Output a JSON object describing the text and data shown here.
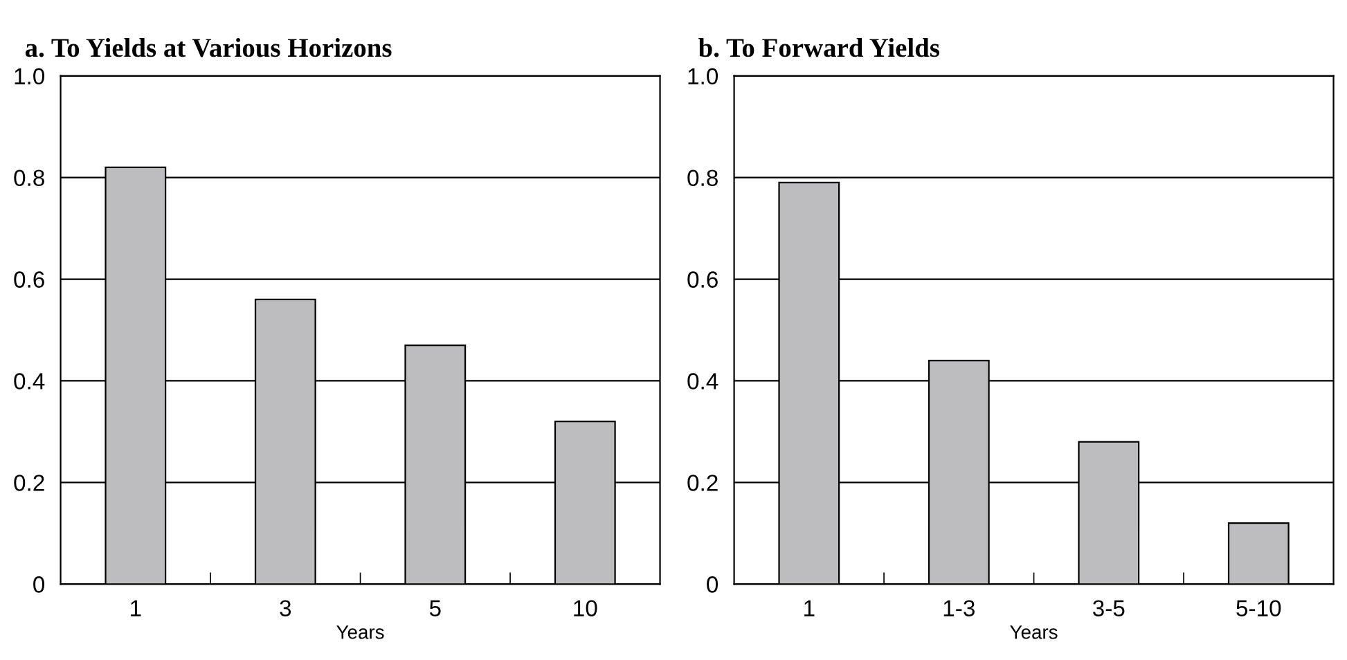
{
  "chart_data": [
    {
      "type": "bar",
      "title": "a. To Yields at Various Horizons",
      "xlabel": "Years",
      "categories": [
        "1",
        "3",
        "5",
        "10"
      ],
      "values": [
        0.82,
        0.56,
        0.47,
        0.32
      ],
      "color": "#bdbdc0",
      "ylim": [
        0,
        1.0
      ],
      "yticks": [
        0,
        0.2,
        0.4,
        0.6,
        0.8,
        {
          "value": 1,
          "label": "1.0"
        }
      ],
      "grid": "y"
    },
    {
      "type": "bar",
      "title": "b. To Forward Yields",
      "xlabel": "Years",
      "categories": [
        "1",
        "1-3",
        "3-5",
        "5-10"
      ],
      "values": [
        0.79,
        0.44,
        0.28,
        0.12
      ],
      "color": "#bdbdc0",
      "ylim": [
        0,
        1.0
      ],
      "yticks": [
        0,
        0.2,
        0.4,
        0.6,
        0.8,
        {
          "value": 1,
          "label": "1.0"
        }
      ],
      "grid": "y"
    }
  ]
}
